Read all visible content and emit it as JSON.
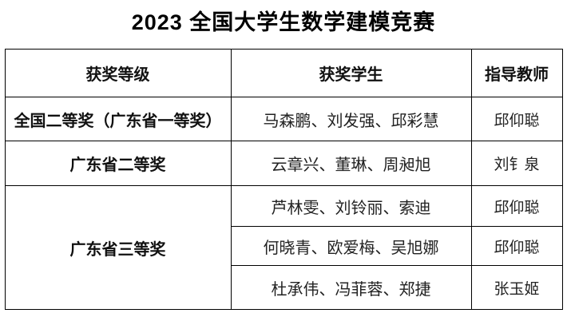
{
  "page": {
    "title": "2023 全国大学生数学建模竞赛"
  },
  "table": {
    "columns": [
      "获奖等级",
      "获奖学生",
      "指导教师"
    ],
    "rows": [
      {
        "award": "全国二等奖（广东省一等奖）",
        "students": "马森鹏、刘发强、邱彩慧",
        "teacher": "邱仰聪"
      },
      {
        "award": "广东省二等奖",
        "students": "云章兴、董琳、周昶旭",
        "teacher": "刘钅泉"
      },
      {
        "award": "广东省三等奖",
        "students": "芦林雯、刘铃丽、索迪",
        "teacher": "邱仰聪"
      },
      {
        "award": null,
        "students": "何晓青、欧爱梅、吴旭娜",
        "teacher": "邱仰聪"
      },
      {
        "award": null,
        "students": "杜承伟、冯菲蓉、郑捷",
        "teacher": "张玉姬"
      }
    ],
    "colors": {
      "border": "#000000",
      "text": "#1a1a1a",
      "background": "#ffffff"
    }
  }
}
